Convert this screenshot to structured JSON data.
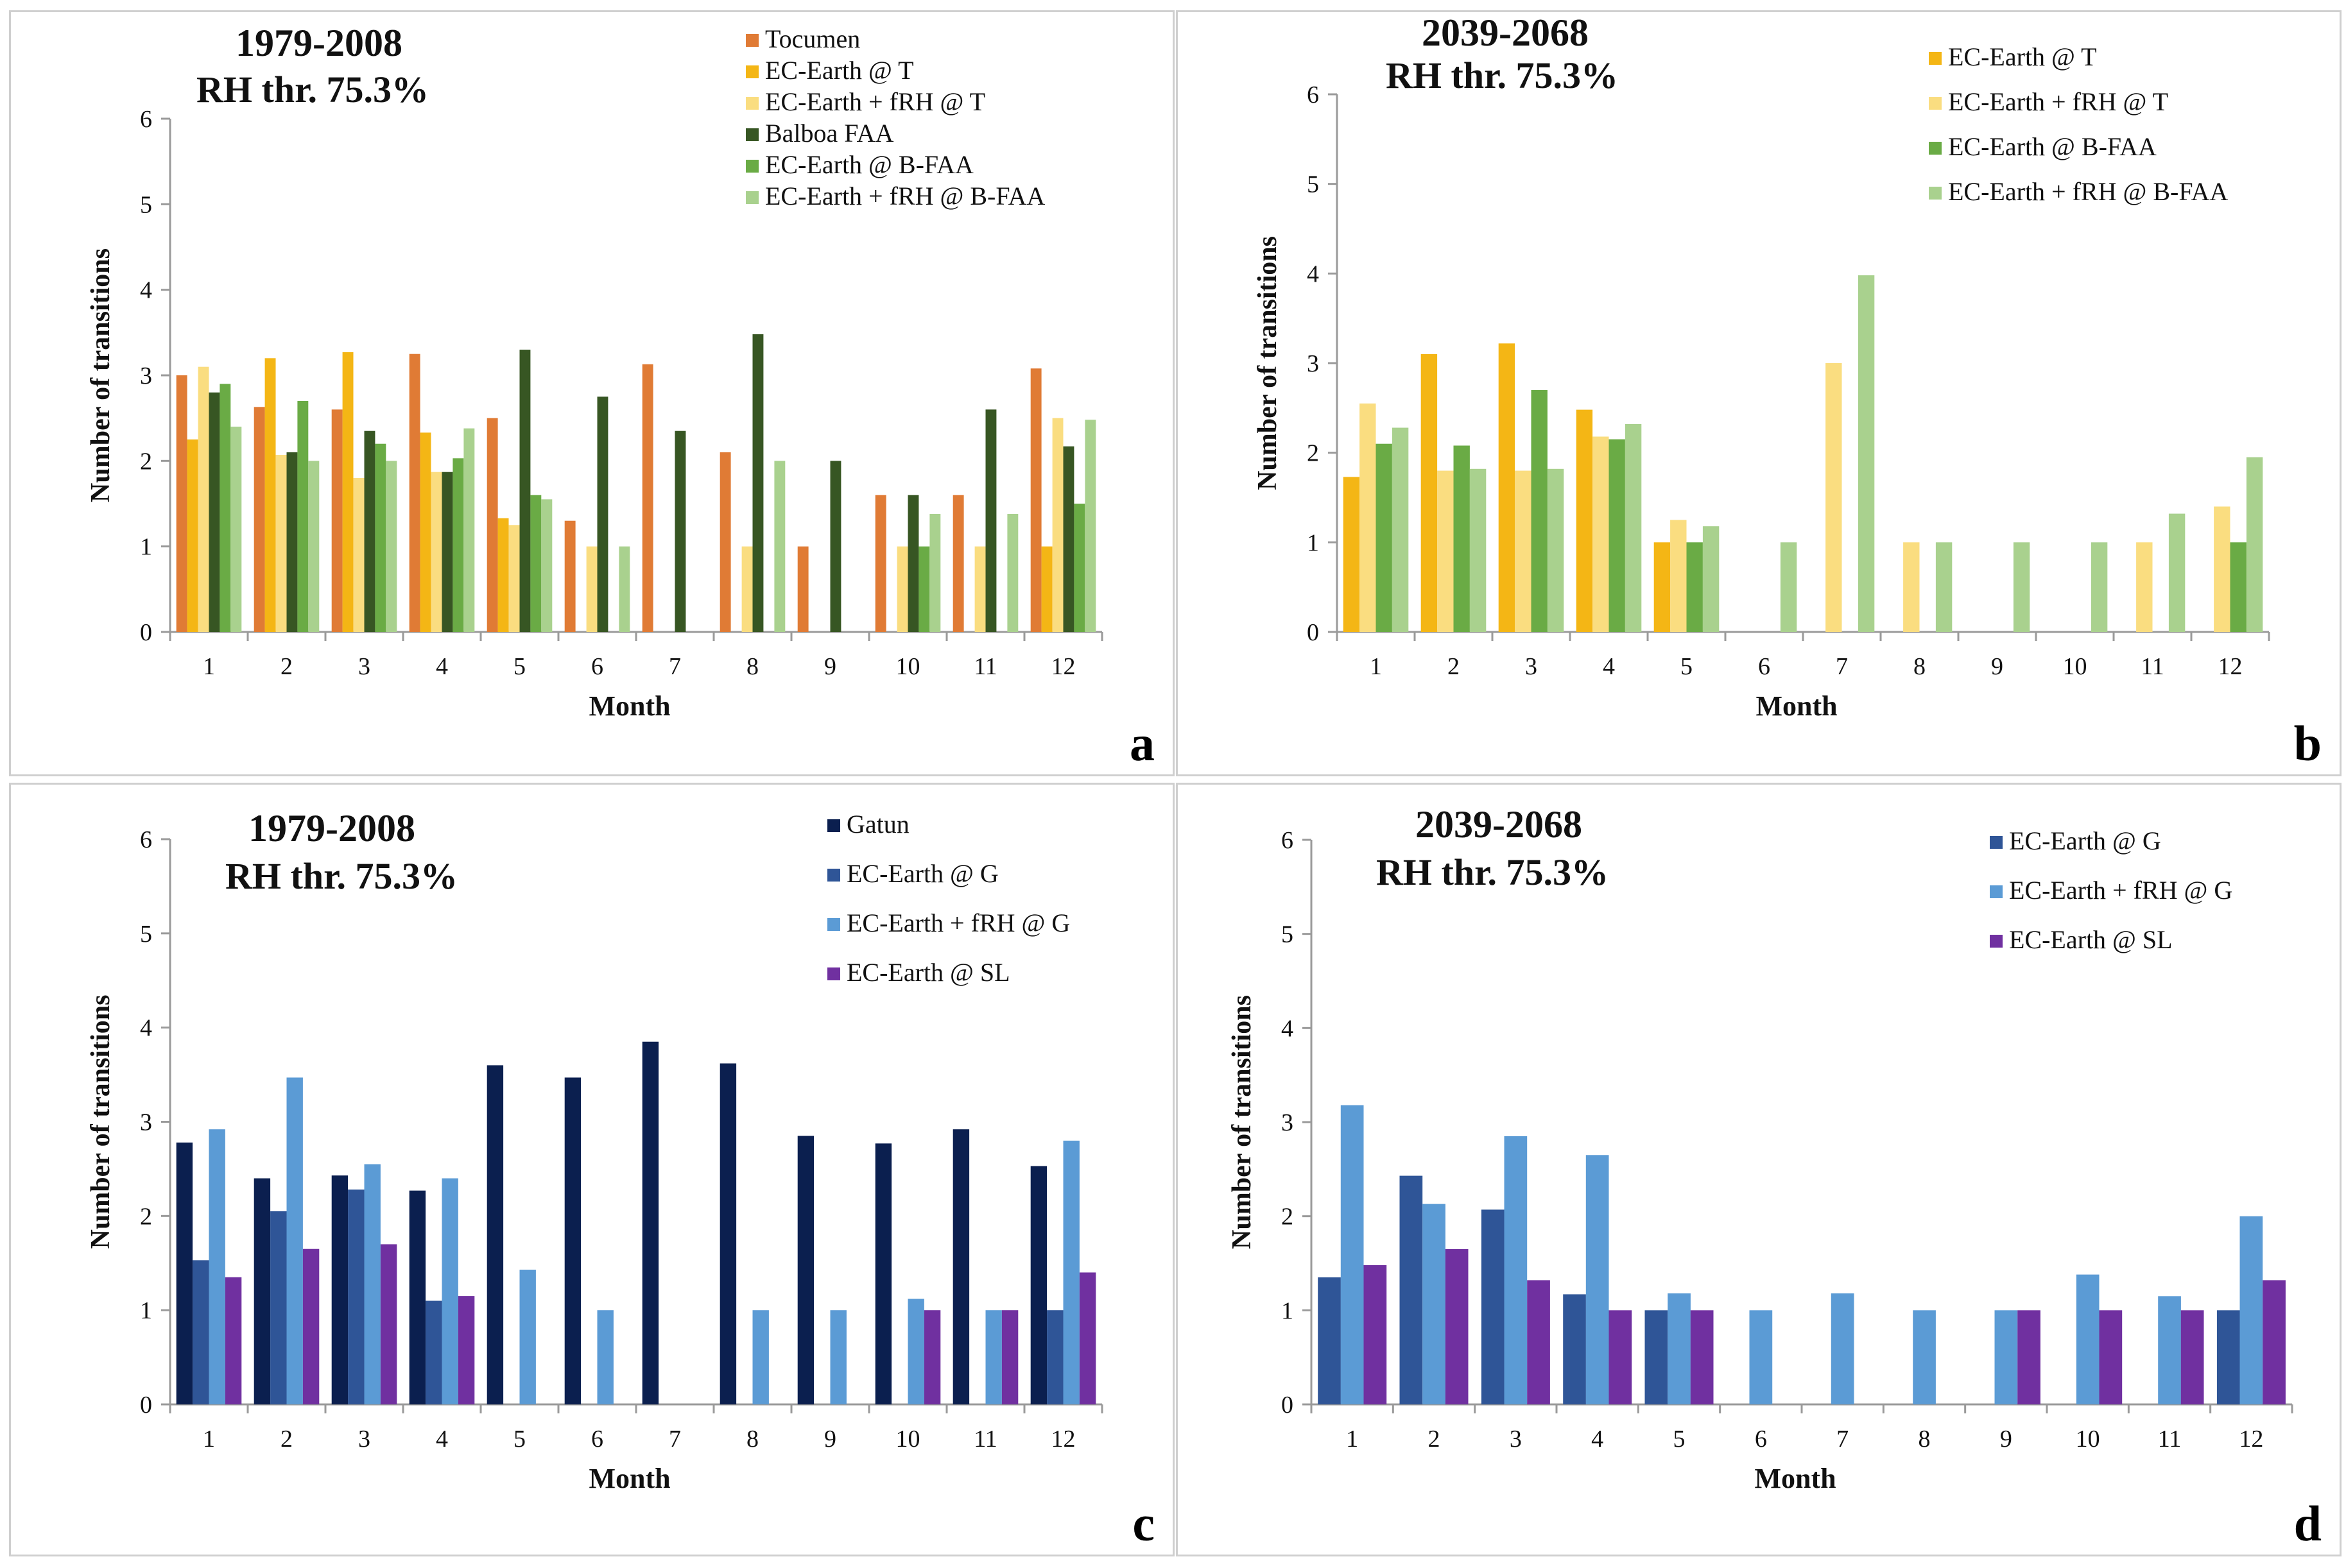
{
  "charts": [
    {
      "id": "a",
      "type": "bar",
      "panel_label": "a",
      "period": "1979-2008",
      "threshold": "RH thr. 75.3%",
      "ylabel": "Number of transitions",
      "xlabel": "Month",
      "ylim": [
        0,
        6
      ],
      "yticks": [
        "0",
        "1",
        "2",
        "3",
        "4",
        "5",
        "6"
      ],
      "categories": [
        "1",
        "2",
        "3",
        "4",
        "5",
        "6",
        "7",
        "8",
        "9",
        "10",
        "11",
        "12"
      ],
      "series": [
        {
          "name": "Tocumen",
          "color": "#e07b35",
          "values": [
            3.0,
            2.63,
            2.6,
            3.25,
            2.5,
            1.3,
            3.13,
            2.1,
            1.0,
            1.6,
            1.6,
            3.08
          ]
        },
        {
          "name": "EC-Earth @ T",
          "color": "#f4b615",
          "values": [
            2.25,
            3.2,
            3.27,
            2.33,
            1.33,
            0,
            0,
            0,
            0,
            0,
            0,
            1.0
          ]
        },
        {
          "name": "EC-Earth + fRH @ T",
          "color": "#fadd80",
          "values": [
            3.1,
            2.07,
            1.8,
            1.87,
            1.25,
            1.0,
            0,
            1.0,
            0,
            1.0,
            1.0,
            2.5
          ]
        },
        {
          "name": "Balboa FAA",
          "color": "#375623",
          "values": [
            2.8,
            2.1,
            2.35,
            1.87,
            3.3,
            2.75,
            2.35,
            3.48,
            2.0,
            1.6,
            2.6,
            2.17
          ]
        },
        {
          "name": "EC-Earth @ B-FAA",
          "color": "#6aab45",
          "values": [
            2.9,
            2.7,
            2.2,
            2.03,
            1.6,
            0,
            0,
            0,
            0,
            1.0,
            0,
            1.5
          ]
        },
        {
          "name": "EC-Earth + fRH @ B-FAA",
          "color": "#a9d18e",
          "values": [
            2.4,
            2.0,
            2.0,
            2.38,
            1.55,
            1.0,
            0,
            2.0,
            0,
            1.38,
            1.38,
            2.48
          ]
        }
      ]
    },
    {
      "id": "b",
      "type": "bar",
      "panel_label": "b",
      "period": "2039-2068",
      "threshold": "RH thr. 75.3%",
      "ylabel": "Number of transitions",
      "xlabel": "Month",
      "ylim": [
        0,
        6
      ],
      "yticks": [
        "0",
        "1",
        "2",
        "3",
        "4",
        "5",
        "6"
      ],
      "categories": [
        "1",
        "2",
        "3",
        "4",
        "5",
        "6",
        "7",
        "8",
        "9",
        "10",
        "11",
        "12"
      ],
      "series": [
        {
          "name": "EC-Earth @ T",
          "color": "#f4b615",
          "values": [
            1.73,
            3.1,
            3.22,
            2.48,
            1.0,
            0,
            0,
            0,
            0,
            0,
            0,
            0
          ]
        },
        {
          "name": "EC-Earth + fRH @ T",
          "color": "#fadd80",
          "values": [
            2.55,
            1.8,
            1.8,
            2.18,
            1.25,
            0,
            3.0,
            1.0,
            0,
            0,
            1.0,
            1.4
          ]
        },
        {
          "name": "EC-Earth @ B-FAA",
          "color": "#6aab45",
          "values": [
            2.1,
            2.08,
            2.7,
            2.15,
            1.0,
            0,
            0,
            0,
            0,
            0,
            0,
            1.0
          ]
        },
        {
          "name": "EC-Earth + fRH @ B-FAA",
          "color": "#a9d18e",
          "values": [
            2.28,
            1.82,
            1.82,
            2.32,
            1.18,
            1.0,
            3.98,
            1.0,
            1.0,
            1.0,
            1.32,
            1.95
          ]
        }
      ]
    },
    {
      "id": "c",
      "type": "bar",
      "panel_label": "c",
      "period": "1979-2008",
      "threshold": "RH thr. 75.3%",
      "ylabel": "Number of transitions",
      "xlabel": "Month",
      "ylim": [
        0,
        6
      ],
      "yticks": [
        "0",
        "1",
        "2",
        "3",
        "4",
        "5",
        "6"
      ],
      "categories": [
        "1",
        "2",
        "3",
        "4",
        "5",
        "6",
        "7",
        "8",
        "9",
        "10",
        "11",
        "12"
      ],
      "series": [
        {
          "name": "Gatun",
          "color": "#0b1f4f",
          "values": [
            2.78,
            2.4,
            2.43,
            2.27,
            3.6,
            3.47,
            3.85,
            3.62,
            2.85,
            2.77,
            2.92,
            2.53
          ]
        },
        {
          "name": "EC-Earth @ G",
          "color": "#2f5597",
          "values": [
            1.53,
            2.05,
            2.28,
            1.1,
            0,
            0,
            0,
            0,
            0,
            0,
            0,
            1.0
          ]
        },
        {
          "name": "EC-Earth + fRH @ G",
          "color": "#5b9bd5",
          "values": [
            2.92,
            3.47,
            2.55,
            2.4,
            1.43,
            1.0,
            0,
            1.0,
            1.0,
            1.12,
            1.0,
            2.8
          ]
        },
        {
          "name": "EC-Earth @ SL",
          "color": "#7030a0",
          "values": [
            1.35,
            1.65,
            1.7,
            1.15,
            0,
            0,
            0,
            0,
            0,
            1.0,
            1.0,
            1.4
          ]
        }
      ]
    },
    {
      "id": "d",
      "type": "bar",
      "panel_label": "d",
      "period": "2039-2068",
      "threshold": "RH thr. 75.3%",
      "ylabel": "Number of transitions",
      "xlabel": "Month",
      "ylim": [
        0,
        6
      ],
      "yticks": [
        "0",
        "1",
        "2",
        "3",
        "4",
        "5",
        "6"
      ],
      "categories": [
        "1",
        "2",
        "3",
        "4",
        "5",
        "6",
        "7",
        "8",
        "9",
        "10",
        "11",
        "12"
      ],
      "series": [
        {
          "name": "EC-Earth @ G",
          "color": "#2f5597",
          "values": [
            1.35,
            2.43,
            2.07,
            1.17,
            1.0,
            0,
            0,
            0,
            0,
            0,
            0,
            1.0
          ]
        },
        {
          "name": "EC-Earth + fRH @ G",
          "color": "#5b9bd5",
          "values": [
            3.18,
            2.13,
            2.85,
            2.65,
            1.18,
            1.0,
            1.18,
            1.0,
            1.0,
            1.38,
            1.15,
            2.0
          ]
        },
        {
          "name": "EC-Earth @ SL",
          "color": "#7030a0",
          "values": [
            1.48,
            1.65,
            1.32,
            1.0,
            1.0,
            0,
            0,
            0,
            1.0,
            1.0,
            1.0,
            1.32
          ]
        }
      ]
    }
  ]
}
